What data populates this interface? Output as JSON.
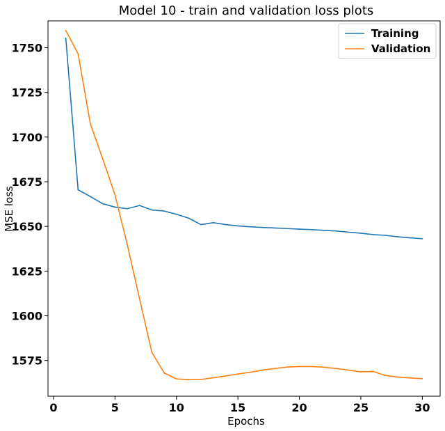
{
  "chart_data": {
    "type": "line",
    "title": "Model 10 - train and validation loss plots",
    "xlabel": "Epochs",
    "ylabel": "MSE loss",
    "xlim": [
      -0.45,
      31.45
    ],
    "ylim": [
      1555,
      1765
    ],
    "xticks": [
      0,
      5,
      10,
      15,
      20,
      25,
      30
    ],
    "yticks": [
      1575,
      1600,
      1625,
      1650,
      1675,
      1700,
      1725,
      1750
    ],
    "grid": false,
    "legend_position": "top-right",
    "x": [
      1,
      2,
      3,
      4,
      5,
      6,
      7,
      8,
      9,
      10,
      11,
      12,
      13,
      14,
      15,
      16,
      17,
      18,
      19,
      20,
      21,
      22,
      23,
      24,
      25,
      26,
      27,
      28,
      29,
      30
    ],
    "series": [
      {
        "name": "Training",
        "color": "#1f77b4",
        "values": [
          1755.3,
          1670.5,
          1666.7,
          1662.7,
          1660.8,
          1659.9,
          1661.7,
          1659.2,
          1658.6,
          1656.8,
          1654.6,
          1651.0,
          1652.1,
          1651.0,
          1650.3,
          1649.8,
          1649.4,
          1649.1,
          1648.8,
          1648.5,
          1648.2,
          1647.8,
          1647.4,
          1646.8,
          1646.2,
          1645.4,
          1645.0,
          1644.2,
          1643.6,
          1643.1
        ]
      },
      {
        "name": "Validation",
        "color": "#ff7f0e",
        "values": [
          1759.6,
          1746.6,
          1707.3,
          1687.9,
          1667.6,
          1639.8,
          1609.4,
          1579.5,
          1568.0,
          1564.7,
          1564.2,
          1564.4,
          1565.3,
          1566.3,
          1567.4,
          1568.4,
          1569.6,
          1570.5,
          1571.3,
          1571.6,
          1571.6,
          1571.2,
          1570.5,
          1569.6,
          1568.6,
          1568.8,
          1566.6,
          1565.7,
          1565.2,
          1564.8
        ]
      }
    ]
  }
}
